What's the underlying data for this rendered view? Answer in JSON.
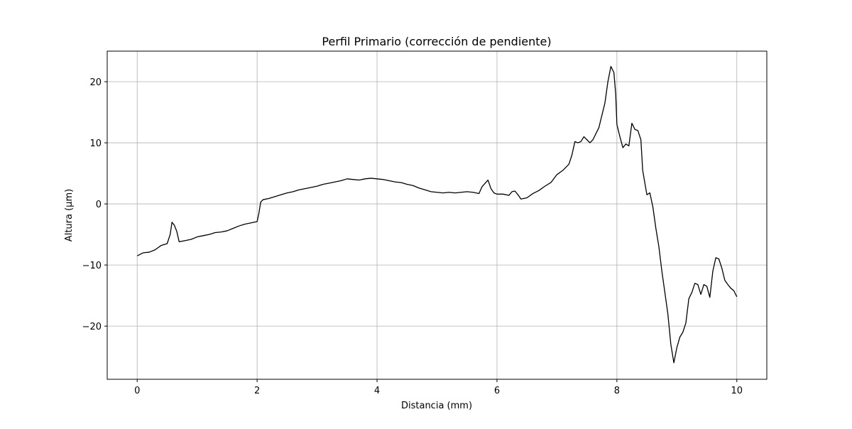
{
  "chart_data": {
    "type": "line",
    "title": "Perfil Primario (corrección de pendiente)",
    "x_label": "Distancia (mm)",
    "y_label": "Altura (µm)",
    "xlim": [
      -0.5,
      10.5
    ],
    "ylim": [
      -28.7,
      25
    ],
    "xticks": [
      0,
      2,
      4,
      6,
      8,
      10
    ],
    "yticks": [
      {
        "value": -20,
        "label": "−20"
      },
      {
        "value": -10,
        "label": "−10"
      },
      0,
      10,
      20
    ],
    "grid": true,
    "x": [
      0,
      0.1,
      0.2,
      0.3,
      0.4,
      0.5,
      0.55,
      0.58,
      0.62,
      0.66,
      0.7,
      0.8,
      0.9,
      1.0,
      1.1,
      1.2,
      1.3,
      1.4,
      1.5,
      1.6,
      1.7,
      1.8,
      1.9,
      2.0,
      2.03,
      2.06,
      2.1,
      2.2,
      2.3,
      2.4,
      2.5,
      2.6,
      2.7,
      2.8,
      2.9,
      3.0,
      3.1,
      3.2,
      3.3,
      3.4,
      3.5,
      3.6,
      3.7,
      3.8,
      3.9,
      4.0,
      4.1,
      4.2,
      4.3,
      4.4,
      4.5,
      4.6,
      4.7,
      4.8,
      4.9,
      5.0,
      5.1,
      5.2,
      5.3,
      5.4,
      5.5,
      5.6,
      5.7,
      5.75,
      5.85,
      5.9,
      5.95,
      6.0,
      6.1,
      6.2,
      6.25,
      6.3,
      6.35,
      6.4,
      6.5,
      6.6,
      6.7,
      6.8,
      6.9,
      7.0,
      7.1,
      7.2,
      7.25,
      7.3,
      7.35,
      7.4,
      7.45,
      7.5,
      7.55,
      7.6,
      7.7,
      7.8,
      7.85,
      7.9,
      7.95,
      7.98,
      8.0,
      8.05,
      8.1,
      8.15,
      8.2,
      8.25,
      8.3,
      8.35,
      8.4,
      8.43,
      8.5,
      8.55,
      8.6,
      8.65,
      8.7,
      8.75,
      8.8,
      8.85,
      8.9,
      8.95,
      9.0,
      9.05,
      9.1,
      9.15,
      9.2,
      9.25,
      9.3,
      9.35,
      9.4,
      9.45,
      9.5,
      9.55,
      9.6,
      9.65,
      9.7,
      9.75,
      9.8,
      9.85,
      9.9,
      9.95,
      10.0
    ],
    "series": [
      {
        "color": "#000000",
        "values": [
          -8.5,
          -8.0,
          -7.9,
          -7.5,
          -6.8,
          -6.5,
          -5,
          -3.0,
          -3.5,
          -4.5,
          -6.2,
          -6.0,
          -5.8,
          -5.4,
          -5.2,
          -5.0,
          -4.7,
          -4.6,
          -4.4,
          -4.0,
          -3.6,
          -3.3,
          -3.1,
          -2.9,
          -1.5,
          0.3,
          0.7,
          0.9,
          1.2,
          1.5,
          1.8,
          2.0,
          2.3,
          2.5,
          2.7,
          2.9,
          3.2,
          3.4,
          3.6,
          3.8,
          4.1,
          4.0,
          3.9,
          4.1,
          4.2,
          4.1,
          4.0,
          3.8,
          3.6,
          3.5,
          3.2,
          3.0,
          2.6,
          2.3,
          2.0,
          1.9,
          1.8,
          1.9,
          1.8,
          1.9,
          2.0,
          1.9,
          1.7,
          2.8,
          3.9,
          2.5,
          1.8,
          1.6,
          1.6,
          1.4,
          2.0,
          2.1,
          1.5,
          0.8,
          1.0,
          1.7,
          2.2,
          2.9,
          3.5,
          4.8,
          5.5,
          6.5,
          8.0,
          10.2,
          10.0,
          10.2,
          11.0,
          10.5,
          10.0,
          10.5,
          12.5,
          16.5,
          20.0,
          22.5,
          21.5,
          18,
          13,
          11,
          9.2,
          9.8,
          9.5,
          13.2,
          12.2,
          12.0,
          10.5,
          5.5,
          1.5,
          1.8,
          -0.5,
          -4,
          -7,
          -11,
          -14.5,
          -18,
          -23,
          -26,
          -23.5,
          -21.8,
          -21,
          -19.5,
          -15.5,
          -14.5,
          -13,
          -13.2,
          -14.8,
          -13.2,
          -13.5,
          -15.3,
          -11,
          -8.8,
          -9.0,
          -10.5,
          -12.5,
          -13.2,
          -13.8,
          -14.2,
          -15.2
        ]
      }
    ]
  }
}
